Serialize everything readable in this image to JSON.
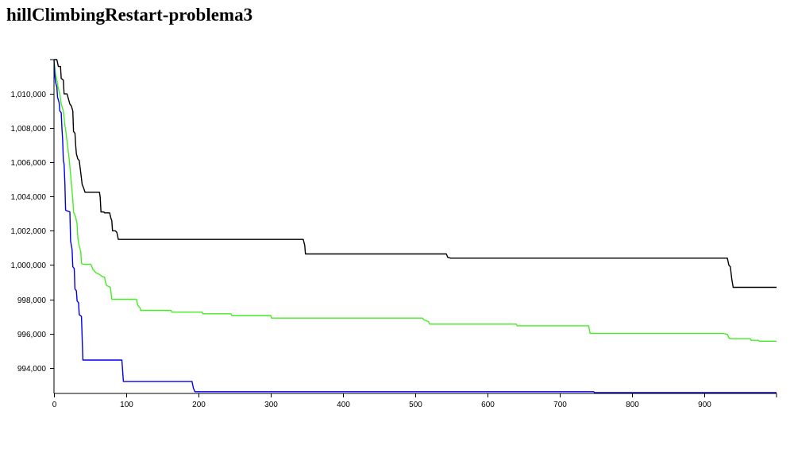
{
  "chart_data": {
    "type": "line",
    "title": "hillClimbingRestart-problema3",
    "xlabel": "",
    "ylabel": "",
    "xlim": [
      0,
      1000
    ],
    "ylim": [
      992500,
      1012000
    ],
    "grid": false,
    "x_ticks": [
      0,
      100,
      200,
      300,
      400,
      500,
      600,
      700,
      800,
      900
    ],
    "x_tick_labels": [
      "0",
      "100",
      "200",
      "300",
      "400",
      "500",
      "600",
      "700",
      "800",
      "900"
    ],
    "y_ticks": [
      994000,
      996000,
      998000,
      1000000,
      1002000,
      1004000,
      1006000,
      1008000,
      1010000
    ],
    "y_tick_labels": [
      "994,000",
      "996,000",
      "998,000",
      "1,000,000",
      "1,002,000",
      "1,004,000",
      "1,006,000",
      "1,008,000",
      "1,010,000"
    ],
    "series": [
      {
        "color": "#000000",
        "points": [
          [
            0,
            1012000
          ],
          [
            4,
            1012000
          ],
          [
            6,
            1011600
          ],
          [
            9,
            1011600
          ],
          [
            10,
            1010900
          ],
          [
            13,
            1010800
          ],
          [
            14,
            1010000
          ],
          [
            18,
            1010000
          ],
          [
            20,
            1009700
          ],
          [
            22,
            1009400
          ],
          [
            24,
            1009300
          ],
          [
            26,
            1009000
          ],
          [
            27,
            1007800
          ],
          [
            29,
            1007700
          ],
          [
            30,
            1007000
          ],
          [
            31,
            1006500
          ],
          [
            33,
            1006200
          ],
          [
            35,
            1006100
          ],
          [
            37,
            1005400
          ],
          [
            39,
            1004700
          ],
          [
            41,
            1004500
          ],
          [
            43,
            1004250
          ],
          [
            63,
            1004250
          ],
          [
            64,
            1003950
          ],
          [
            65,
            1003100
          ],
          [
            69,
            1003100
          ],
          [
            70,
            1003050
          ],
          [
            77,
            1003050
          ],
          [
            79,
            1002700
          ],
          [
            80,
            1002600
          ],
          [
            81,
            1002000
          ],
          [
            85,
            1002000
          ],
          [
            87,
            1001900
          ],
          [
            89,
            1001500
          ],
          [
            345,
            1001500
          ],
          [
            347,
            1001150
          ],
          [
            348,
            1000650
          ],
          [
            543,
            1000650
          ],
          [
            545,
            1000450
          ],
          [
            549,
            1000400
          ],
          [
            932,
            1000400
          ],
          [
            934,
            1000000
          ],
          [
            936,
            999900
          ],
          [
            938,
            999200
          ],
          [
            940,
            998700
          ],
          [
            1000,
            998700
          ]
        ]
      },
      {
        "color": "#44ee22",
        "points": [
          [
            0,
            1012000
          ],
          [
            2,
            1011200
          ],
          [
            4,
            1010800
          ],
          [
            6,
            1010300
          ],
          [
            8,
            1010000
          ],
          [
            10,
            1009400
          ],
          [
            13,
            1009000
          ],
          [
            15,
            1008200
          ],
          [
            17,
            1007600
          ],
          [
            19,
            1006900
          ],
          [
            21,
            1006200
          ],
          [
            23,
            1005300
          ],
          [
            25,
            1004300
          ],
          [
            26,
            1003800
          ],
          [
            27,
            1003100
          ],
          [
            30,
            1002800
          ],
          [
            32,
            1002400
          ],
          [
            33,
            1001600
          ],
          [
            35,
            1001100
          ],
          [
            37,
            1000800
          ],
          [
            38,
            1000100
          ],
          [
            40,
            1000050
          ],
          [
            51,
            1000050
          ],
          [
            54,
            999750
          ],
          [
            58,
            999550
          ],
          [
            63,
            999450
          ],
          [
            68,
            999300
          ],
          [
            70,
            999300
          ],
          [
            71,
            999050
          ],
          [
            73,
            998800
          ],
          [
            78,
            998700
          ],
          [
            80,
            998000
          ],
          [
            114,
            998000
          ],
          [
            116,
            997650
          ],
          [
            119,
            997500
          ],
          [
            120,
            997350
          ],
          [
            162,
            997350
          ],
          [
            163,
            997250
          ],
          [
            205,
            997250
          ],
          [
            206,
            997150
          ],
          [
            245,
            997150
          ],
          [
            246,
            997050
          ],
          [
            300,
            997050
          ],
          [
            301,
            996900
          ],
          [
            510,
            996900
          ],
          [
            512,
            996800
          ],
          [
            518,
            996700
          ],
          [
            520,
            996550
          ],
          [
            640,
            996550
          ],
          [
            641,
            996450
          ],
          [
            740,
            996450
          ],
          [
            742,
            996000
          ],
          [
            926,
            996000
          ],
          [
            932,
            995950
          ],
          [
            934,
            995750
          ],
          [
            936,
            995700
          ],
          [
            964,
            995700
          ],
          [
            965,
            995600
          ],
          [
            975,
            995600
          ],
          [
            976,
            995550
          ],
          [
            1000,
            995550
          ]
        ]
      },
      {
        "color": "#0000ee",
        "points": [
          [
            0,
            1012000
          ],
          [
            1,
            1011200
          ],
          [
            2,
            1010700
          ],
          [
            4,
            1010400
          ],
          [
            5,
            1009800
          ],
          [
            7,
            1009500
          ],
          [
            8,
            1009000
          ],
          [
            10,
            1008900
          ],
          [
            11,
            1008000
          ],
          [
            12,
            1007300
          ],
          [
            13,
            1006100
          ],
          [
            14,
            1005900
          ],
          [
            15,
            1004800
          ],
          [
            16,
            1003200
          ],
          [
            22,
            1003100
          ],
          [
            23,
            1001400
          ],
          [
            25,
            1000900
          ],
          [
            26,
            999900
          ],
          [
            28,
            999800
          ],
          [
            29,
            998600
          ],
          [
            31,
            998500
          ],
          [
            32,
            997900
          ],
          [
            34,
            997800
          ],
          [
            35,
            997100
          ],
          [
            38,
            997000
          ],
          [
            40,
            994450
          ],
          [
            94,
            994450
          ],
          [
            96,
            993200
          ],
          [
            191,
            993200
          ],
          [
            193,
            992800
          ],
          [
            195,
            992600
          ],
          [
            747,
            992600
          ],
          [
            748,
            992550
          ],
          [
            1000,
            992550
          ]
        ]
      }
    ]
  }
}
